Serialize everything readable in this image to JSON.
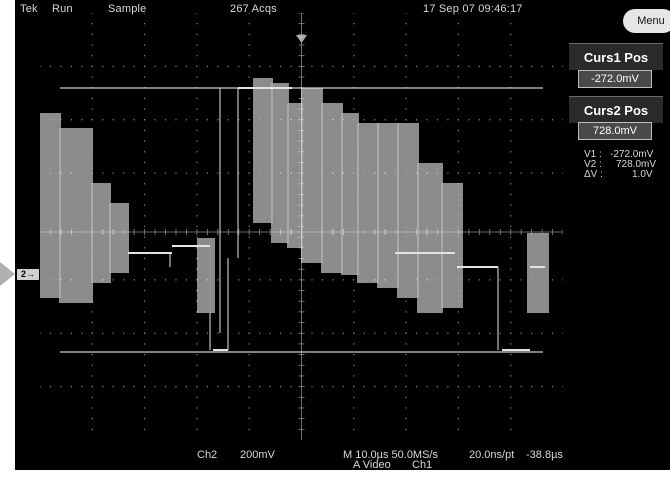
{
  "status_bar": {
    "brand": "Tek",
    "run_state": "Run",
    "acq_mode": "Sample",
    "acq_count": "267 Acqs",
    "datetime": "17 Sep 07 09:46:17"
  },
  "menu": {
    "label": "Menu"
  },
  "cursors": {
    "curs1": {
      "title": "Curs1 Pos",
      "value": "-272.0mV"
    },
    "curs2": {
      "title": "Curs2 Pos",
      "value": "728.0mV"
    },
    "readout": [
      {
        "label": "V1 :",
        "value": "-272.0mV"
      },
      {
        "label": "V2 :",
        "value": "728.0mV"
      },
      {
        "label": "ΔV :",
        "value": "1.0V"
      }
    ]
  },
  "bottom": {
    "channel": "Ch2",
    "volts_per_div": "200mV",
    "timebase": "M 10.0µs 50.0MS/s",
    "resolution": "20.0ns/pt",
    "trigger_position": "-38.8µs",
    "trigger": "A  Video",
    "trigger_source": "Ch1"
  },
  "channel_marker": {
    "label": "2→"
  },
  "colors": {
    "trace": "#e4e4e4",
    "grid": "#8c8c8c",
    "background": "#000000"
  }
}
